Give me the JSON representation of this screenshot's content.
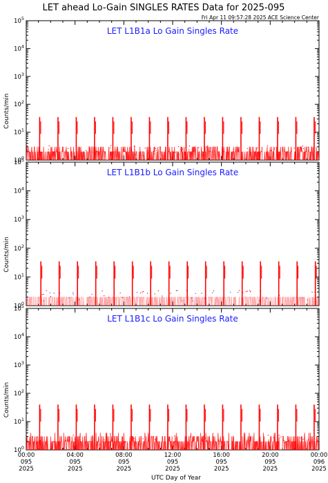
{
  "title": "LET ahead Lo-Gain SINGLES RATES Data for 2025-095",
  "timestamp": "Fri Apr 11 09:57:28 2025 ACE Science Center",
  "xlabel": "UTC Day of Year",
  "ylabel": "Counts/min",
  "colors": {
    "series": "#ff0000",
    "title_text": "#1a1aff",
    "axes": "#000000"
  },
  "x_ticks": [
    {
      "time": "00:00",
      "day": "095",
      "year": "2025"
    },
    {
      "time": "04:00",
      "day": "095",
      "year": "2025"
    },
    {
      "time": "08:00",
      "day": "095",
      "year": "2025"
    },
    {
      "time": "12:00",
      "day": "095",
      "year": "2025"
    },
    {
      "time": "16:00",
      "day": "095",
      "year": "2025"
    },
    {
      "time": "20:00",
      "day": "095",
      "year": "2025"
    },
    {
      "time": "00:00",
      "day": "096",
      "year": "2025"
    }
  ],
  "chart_data": [
    {
      "type": "line",
      "title": "LET L1B1a Lo Gain Singles Rate",
      "ylabel": "Counts/min",
      "yscale": "log",
      "ylim": [
        1,
        100000
      ],
      "xlim_hours": [
        0,
        24
      ],
      "y_ticks": [
        "10^0",
        "10^1",
        "10^2",
        "10^3",
        "10^4",
        "10^5"
      ],
      "baseline_range": [
        1,
        3
      ],
      "series": [
        {
          "spikes": [
            {
              "hour": 1.1,
              "peak": 35
            },
            {
              "hour": 2.6,
              "peak": 35
            },
            {
              "hour": 4.1,
              "peak": 35
            },
            {
              "hour": 5.6,
              "peak": 35
            },
            {
              "hour": 7.1,
              "peak": 35
            },
            {
              "hour": 8.6,
              "peak": 35
            },
            {
              "hour": 10.1,
              "peak": 35
            },
            {
              "hour": 11.6,
              "peak": 35
            },
            {
              "hour": 13.1,
              "peak": 35
            },
            {
              "hour": 14.6,
              "peak": 35
            },
            {
              "hour": 16.1,
              "peak": 35
            },
            {
              "hour": 17.6,
              "peak": 35
            },
            {
              "hour": 19.1,
              "peak": 35
            },
            {
              "hour": 20.6,
              "peak": 35
            },
            {
              "hour": 22.1,
              "peak": 35
            },
            {
              "hour": 23.6,
              "peak": 35
            }
          ]
        }
      ]
    },
    {
      "type": "line",
      "title": "LET L1B1b Lo Gain Singles Rate",
      "ylabel": "Counts/min",
      "yscale": "log",
      "ylim": [
        1,
        100000
      ],
      "xlim_hours": [
        0,
        24
      ],
      "y_ticks": [
        "10^0",
        "10^1",
        "10^2",
        "10^3",
        "10^4",
        "10^5"
      ],
      "baseline_range": [
        1,
        2
      ],
      "series": [
        {
          "spikes": [
            {
              "hour": 1.2,
              "peak": 35
            },
            {
              "hour": 2.7,
              "peak": 35
            },
            {
              "hour": 4.2,
              "peak": 35
            },
            {
              "hour": 5.7,
              "peak": 35
            },
            {
              "hour": 7.2,
              "peak": 35
            },
            {
              "hour": 8.7,
              "peak": 35
            },
            {
              "hour": 10.2,
              "peak": 35
            },
            {
              "hour": 11.7,
              "peak": 35
            },
            {
              "hour": 13.2,
              "peak": 35
            },
            {
              "hour": 14.7,
              "peak": 35
            },
            {
              "hour": 16.2,
              "peak": 35
            },
            {
              "hour": 17.7,
              "peak": 35
            },
            {
              "hour": 19.2,
              "peak": 35
            },
            {
              "hour": 20.7,
              "peak": 35
            },
            {
              "hour": 22.2,
              "peak": 35
            },
            {
              "hour": 23.7,
              "peak": 35
            }
          ]
        }
      ]
    },
    {
      "type": "line",
      "title": "LET L1B1c Lo Gain Singles Rate",
      "ylabel": "Counts/min",
      "yscale": "log",
      "ylim": [
        1,
        100000
      ],
      "xlim_hours": [
        0,
        24
      ],
      "y_ticks": [
        "10^0",
        "10^1",
        "10^2",
        "10^3",
        "10^4",
        "10^5"
      ],
      "baseline_range": [
        1,
        4
      ],
      "series": [
        {
          "spikes": [
            {
              "hour": 1.1,
              "peak": 40
            },
            {
              "hour": 2.6,
              "peak": 40
            },
            {
              "hour": 4.1,
              "peak": 40
            },
            {
              "hour": 5.6,
              "peak": 40
            },
            {
              "hour": 7.1,
              "peak": 40
            },
            {
              "hour": 8.6,
              "peak": 40
            },
            {
              "hour": 10.1,
              "peak": 40
            },
            {
              "hour": 11.6,
              "peak": 40
            },
            {
              "hour": 13.1,
              "peak": 40
            },
            {
              "hour": 14.6,
              "peak": 40
            },
            {
              "hour": 16.1,
              "peak": 40
            },
            {
              "hour": 17.6,
              "peak": 40
            },
            {
              "hour": 19.1,
              "peak": 40
            },
            {
              "hour": 20.6,
              "peak": 40
            },
            {
              "hour": 22.1,
              "peak": 40
            },
            {
              "hour": 23.6,
              "peak": 40
            }
          ]
        }
      ]
    }
  ]
}
